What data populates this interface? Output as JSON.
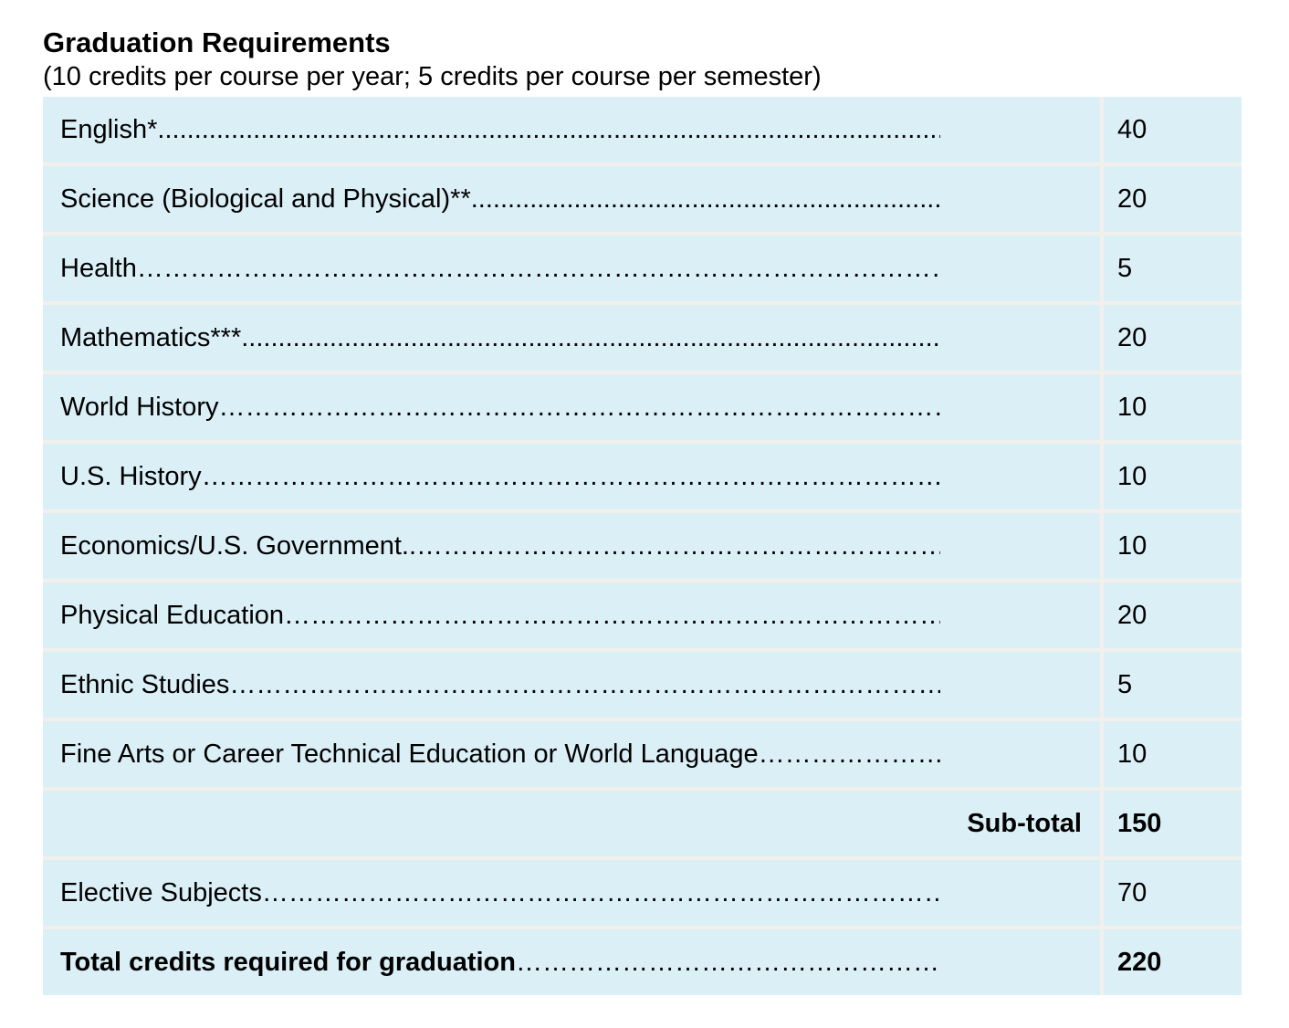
{
  "header": {
    "title": "Graduation Requirements",
    "subtitle": "(10 credits per course per year; 5 credits per course per semester)"
  },
  "colors": {
    "cell_background": "#dbeff7",
    "gap_line": "#f1f0ec",
    "text": "#000000"
  },
  "table": {
    "rows": [
      {
        "label": "English*",
        "leader": "......................................................................................................................................................",
        "credits": "40"
      },
      {
        "label": "Science (Biological and Physical)**",
        "leader": "......................................................................................................................................................",
        "credits": "20"
      },
      {
        "label": "Health",
        "leader": "………………………………………………………………………………………………………………………………………………………………………………………………………………………………………………………………………………………………………………………………………………………………………………",
        "credits": "5"
      },
      {
        "label": "Mathematics***",
        "leader": "......................................................................................................................................................",
        "credits": "20"
      },
      {
        "label": "World History",
        "leader": "………………………………………………………………………………………………………………………………………………………………………………………………………………………………………………………………………………………………………………………………………………………………………………",
        "credits": "10"
      },
      {
        "label": "U.S.  History",
        "leader": "………………………………………………………………………………………………………………………………………………………………………………………………………………………………………………………………………………………………………………………………………………………………………………",
        "credits": "10"
      },
      {
        "label": "Economics/U.S. Government",
        "leader": "..………………………………………………………………………………………………………………………………………………………………………………………………………………………………………………………………………………………………………………………………………………………………………………",
        "credits": "10"
      },
      {
        "label": "Physical Education",
        "leader": "………………………………………………………………………………………………………………………………………………………………………………………………………………………………………………………………………………………………………………………………………………………………………………",
        "credits": "20"
      },
      {
        "label": "Ethnic Studies",
        "leader": "………………………………………………………………………………………………………………………………………………………………………………………………………………………………………………………………………………………………………………………………………………………………………………",
        "credits": "5"
      },
      {
        "label": "Fine Arts or Career Technical Education or World Language",
        "leader": "………………………………………………………………………………………………………………………………………………………………………………………………………………………………………………………………………………………………………………………………………………………………………………",
        "credits": "10"
      },
      {
        "label": "Sub-total",
        "leader": "",
        "credits": "150"
      },
      {
        "label": "Elective Subjects",
        "leader": "………………………………………………………………………………………………………………………………………………………………………………………………………………………………………………………………………………………………………………………………………………………………………………",
        "credits": "70"
      },
      {
        "label": "Total credits required for graduation",
        "leader": "………………………………………………………………………………………………………………………………………………………………………………………………………………………………………………………………………………………………………………………………………………………………………………",
        "credits": "220"
      }
    ]
  }
}
